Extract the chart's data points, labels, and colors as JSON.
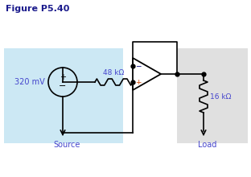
{
  "title": "Figure P5.40",
  "title_color": "#1a1a8c",
  "bg_color": "#ffffff",
  "source_box_color": "#cce8f4",
  "load_box_color": "#e0e0e0",
  "source_voltage": "320 mV",
  "resistor_48k": "48 kΩ",
  "resistor_16k": "16 kΩ",
  "source_label": "Source",
  "load_label": "Load",
  "wire_color": "#000000",
  "component_color": "#000000",
  "plus_color": "#cc4400",
  "minus_color": "#000080",
  "label_color": "#4444cc"
}
